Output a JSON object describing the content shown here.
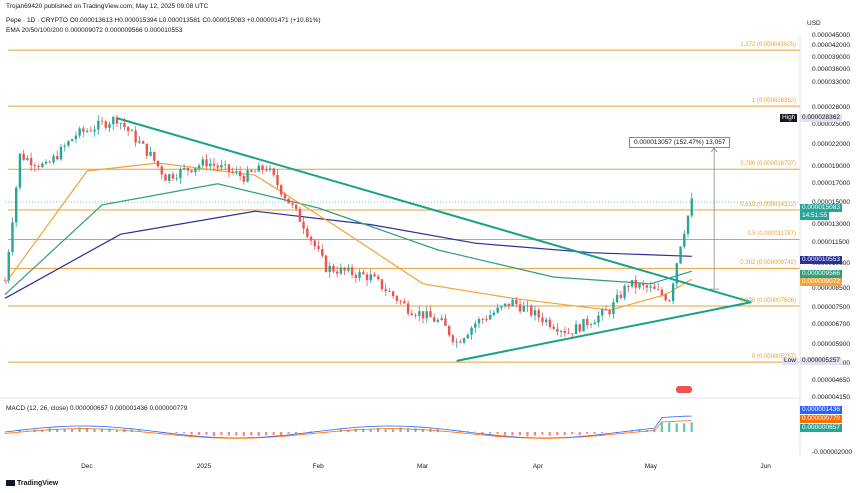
{
  "header": {
    "published": "Trojan69420 published on TradingView.com, May 12, 2025 09:08 UTC",
    "symbol_line": "Pepe · 1D · CRYPTO  O0.000013613  H0.000015394  L0.000013581  C0.000015083  +0.000001471 (+10.81%)",
    "ema_line": "EMA 20/50/100/200  0.000009072  0.000009566  0.000010553",
    "currency": "USD",
    "macd_line": "MACD (12, 26, close)  0.000000657  0.000001436  0.000000779"
  },
  "branding": {
    "logo_text": "TradingView"
  },
  "colors": {
    "up": "#26a69a",
    "down": "#ef5350",
    "fib": "#e8a13b",
    "ema20": "#f2a33a",
    "ema50": "#2e9e7c",
    "ema200": "#2a2f9a",
    "trend": "#17a185",
    "accent": "#2962ff"
  },
  "price_axis": {
    "ticks": [
      "0.000045000",
      "0.000042000",
      "0.000039000",
      "0.000036000",
      "0.000033000",
      "0.000028000",
      "0.000025000",
      "0.000022000",
      "0.000019000",
      "0.000017000",
      "0.000015000",
      "0.000013000",
      "0.000011500",
      "0.000010000",
      "0.000008500",
      "0.000007500",
      "0.000006700",
      "0.000005900",
      "0.000005200",
      "0.000004650",
      "0.000004150"
    ],
    "high_label": "High",
    "high_value": "0.000028362",
    "low_label": "Low",
    "low_value": "0.000005257",
    "current_price": "0.000015083",
    "countdown": "14:51:55",
    "ema_tags": [
      "0.000010553",
      "0.000009566",
      "0.000009072"
    ]
  },
  "macd_axis": {
    "ticks": [
      "-0.000002000"
    ],
    "tags": [
      "0.000001436",
      "0.000000779",
      "0.000000657"
    ]
  },
  "fib_levels": [
    {
      "label": "1.272 (0.000041005)",
      "value": 4.1005e-05
    },
    {
      "label": "1 (0.000028362)",
      "value": 2.8362e-05
    },
    {
      "label": "0.786 (0.000018707)",
      "value": 1.8707e-05
    },
    {
      "label": "0.618 (0.000014312)",
      "value": 1.4312e-05
    },
    {
      "label": "0.5 (0.000011787)",
      "value": 1.1787e-05
    },
    {
      "label": "0.382 (0.000009742)",
      "value": 9.742e-06
    },
    {
      "label": "0.236 (0.000007606)",
      "value": 7.606e-06
    },
    {
      "label": "0 (0.000005257)",
      "value": 5.257e-06
    }
  ],
  "measure_label": "0.000013057 (152.47%) 13,057",
  "time_axis": [
    "Dec",
    "2025",
    "Feb",
    "Mar",
    "Apr",
    "May",
    "Jun"
  ],
  "chart_data": {
    "type": "candlestick",
    "title": "Pepe · 1D · CRYPTO",
    "series_unit": "USD",
    "yscale": "log",
    "y_range": [
      4.15e-06,
      4.5e-05
    ],
    "x_range": [
      "2024-11-09",
      "2025-06-10"
    ],
    "current": {
      "open": 1.3613e-05,
      "high": 1.5394e-05,
      "low": 1.3581e-05,
      "close": 1.5083e-05,
      "change": 1.471e-06,
      "change_pct": 10.81
    },
    "price_path": [
      {
        "date": "2024-11-09",
        "close": 9e-06
      },
      {
        "date": "2024-11-13",
        "close": 2.05e-05
      },
      {
        "date": "2024-11-20",
        "close": 1.9e-05
      },
      {
        "date": "2024-11-28",
        "close": 2.35e-05
      },
      {
        "date": "2024-12-09",
        "close": 2.62e-05
      },
      {
        "date": "2024-12-18",
        "close": 2.05e-05
      },
      {
        "date": "2024-12-22",
        "close": 1.78e-05
      },
      {
        "date": "2025-01-02",
        "close": 1.96e-05
      },
      {
        "date": "2025-01-12",
        "close": 1.78e-05
      },
      {
        "date": "2025-01-18",
        "close": 1.9e-05
      },
      {
        "date": "2025-01-28",
        "close": 1.3e-05
      },
      {
        "date": "2025-02-03",
        "close": 9.8e-06
      },
      {
        "date": "2025-02-15",
        "close": 9.2e-06
      },
      {
        "date": "2025-02-25",
        "close": 7.5e-06
      },
      {
        "date": "2025-03-06",
        "close": 6.8e-06
      },
      {
        "date": "2025-03-10",
        "close": 6e-06
      },
      {
        "date": "2025-03-15",
        "close": 6.8e-06
      },
      {
        "date": "2025-03-25",
        "close": 7.8e-06
      },
      {
        "date": "2025-04-02",
        "close": 7e-06
      },
      {
        "date": "2025-04-09",
        "close": 6.4e-06
      },
      {
        "date": "2025-04-20",
        "close": 7.4e-06
      },
      {
        "date": "2025-04-25",
        "close": 8.8e-06
      },
      {
        "date": "2025-05-01",
        "close": 8.5e-06
      },
      {
        "date": "2025-05-06",
        "close": 8e-06
      },
      {
        "date": "2025-05-09",
        "close": 1.15e-05
      },
      {
        "date": "2025-05-12",
        "close": 1.5083e-05
      }
    ],
    "ema20_path": [
      {
        "date": "2024-11-09",
        "value": 8.8e-06
      },
      {
        "date": "2024-12-01",
        "value": 1.85e-05
      },
      {
        "date": "2024-12-20",
        "value": 1.95e-05
      },
      {
        "date": "2025-01-15",
        "value": 1.8e-05
      },
      {
        "date": "2025-02-05",
        "value": 1.3e-05
      },
      {
        "date": "2025-03-01",
        "value": 8.8e-06
      },
      {
        "date": "2025-03-25",
        "value": 8e-06
      },
      {
        "date": "2025-04-20",
        "value": 7.4e-06
      },
      {
        "date": "2025-05-05",
        "value": 8.2e-06
      },
      {
        "date": "2025-05-12",
        "value": 9.072e-06
      }
    ],
    "ema50_path": [
      {
        "date": "2024-11-09",
        "value": 8.2e-06
      },
      {
        "date": "2024-12-05",
        "value": 1.48e-05
      },
      {
        "date": "2025-01-05",
        "value": 1.7e-05
      },
      {
        "date": "2025-02-01",
        "value": 1.45e-05
      },
      {
        "date": "2025-03-05",
        "value": 1.1e-05
      },
      {
        "date": "2025-04-05",
        "value": 9.2e-06
      },
      {
        "date": "2025-05-01",
        "value": 8.8e-06
      },
      {
        "date": "2025-05-12",
        "value": 9.566e-06
      }
    ],
    "ema200_path": [
      {
        "date": "2024-11-09",
        "value": 8e-06
      },
      {
        "date": "2024-12-10",
        "value": 1.22e-05
      },
      {
        "date": "2025-01-15",
        "value": 1.42e-05
      },
      {
        "date": "2025-02-15",
        "value": 1.3e-05
      },
      {
        "date": "2025-03-15",
        "value": 1.15e-05
      },
      {
        "date": "2025-04-15",
        "value": 1.08e-05
      },
      {
        "date": "2025-05-12",
        "value": 1.0553e-05
      }
    ],
    "trendlines": [
      {
        "from": {
          "date": "2024-12-09",
          "value": 2.62e-05
        },
        "to": {
          "date": "2025-05-28",
          "value": 7.8e-06
        }
      },
      {
        "from": {
          "date": "2025-03-10",
          "value": 5.3e-06
        },
        "to": {
          "date": "2025-05-28",
          "value": 7.8e-06
        }
      }
    ],
    "macd": {
      "macd": 6.57e-07,
      "signal": 1.436e-06,
      "histogram": 7.79e-07
    }
  }
}
